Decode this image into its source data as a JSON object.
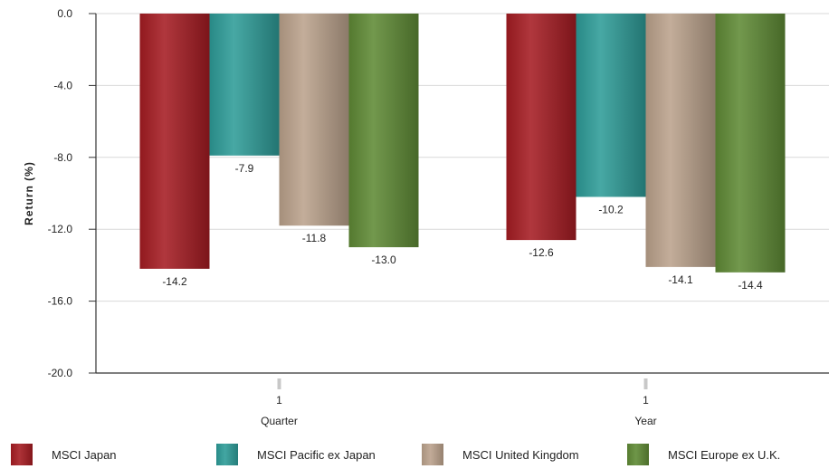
{
  "chart_data": {
    "type": "bar",
    "categories": [
      {
        "line1": "1",
        "line2": "Quarter"
      },
      {
        "line1": "1",
        "line2": "Year"
      }
    ],
    "series": [
      {
        "name": "MSCI Japan",
        "values": [
          -14.2,
          -12.6
        ],
        "color": "#a51c22"
      },
      {
        "name": "MSCI Pacific ex Japan",
        "values": [
          -7.9,
          -10.2
        ],
        "color": "#2e9c98"
      },
      {
        "name": "MSCI United Kingdom",
        "values": [
          -11.8,
          -14.1
        ],
        "color": "#bba28c"
      },
      {
        "name": "MSCI Europe ex U.K.",
        "values": [
          -13.0,
          -14.4
        ],
        "color": "#5f8a35"
      }
    ],
    "ylabel": "Return (%)",
    "ylim": [
      -20,
      0
    ],
    "yticks": [
      "0.0",
      "-4.0",
      "-8.0",
      "-12.0",
      "-16.0",
      "-20.0"
    ],
    "grid": true,
    "legend_position": "bottom"
  }
}
